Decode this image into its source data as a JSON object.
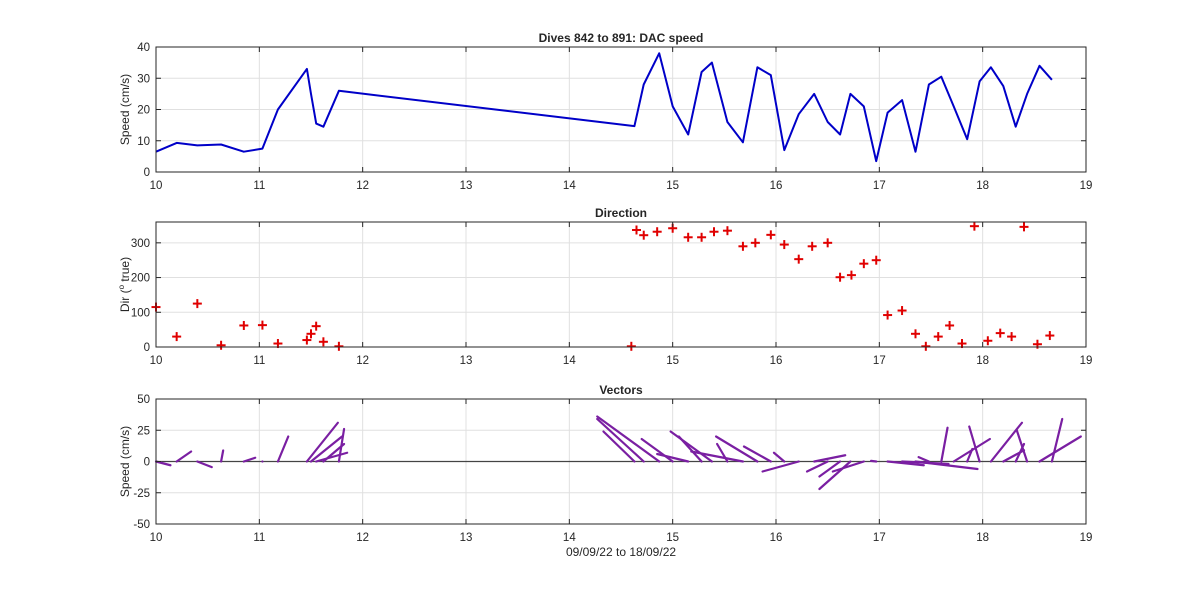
{
  "colors": {
    "speed_line": "#0000c8",
    "direction_marker": "#e00000",
    "vectors": "#7a1fa2",
    "axes": "#262626",
    "grid": "#e0e0e0",
    "zero_line": "#444444"
  },
  "chart_data": [
    {
      "type": "line",
      "title": "Dives 842 to 891: DAC speed",
      "xlabel": "",
      "ylabel": "Speed (cm/s)",
      "xlim": [
        10,
        19
      ],
      "ylim": [
        0,
        40
      ],
      "xticks": [
        10,
        11,
        12,
        13,
        14,
        15,
        16,
        17,
        18,
        19
      ],
      "yticks": [
        0,
        10,
        20,
        30,
        40
      ],
      "grid": true,
      "series": [
        {
          "x": [
            10.0,
            10.2,
            10.4,
            10.63,
            10.85,
            11.03,
            11.18,
            11.46,
            11.5,
            11.55,
            11.62,
            11.77,
            14.63,
            14.72,
            14.87,
            15.0,
            15.15,
            15.28,
            15.38,
            15.53,
            15.68,
            15.82,
            15.95,
            16.08,
            16.22,
            16.37,
            16.5,
            16.62,
            16.72,
            16.85,
            16.97,
            17.08,
            17.22,
            17.35,
            17.48,
            17.6,
            17.72,
            17.85,
            17.97,
            18.08,
            18.2,
            18.32,
            18.43,
            18.55,
            18.67
          ],
          "y": [
            6.5,
            9.3,
            8.5,
            8.8,
            6.5,
            7.5,
            20,
            33,
            25,
            15.5,
            14.5,
            26,
            14.7,
            28,
            38,
            21,
            12,
            32,
            35,
            16,
            9.5,
            33.5,
            31,
            7,
            18.5,
            25,
            16,
            12,
            25,
            21,
            3.5,
            19,
            23,
            6.5,
            28,
            30.5,
            21,
            10.5,
            29,
            33.5,
            27.5,
            14.5,
            25,
            34,
            29.5
          ]
        }
      ]
    },
    {
      "type": "scatter",
      "title": "Direction",
      "xlabel": "",
      "ylabel": "Dir (o true)",
      "ylabel_parts": [
        "Dir (",
        "o",
        " true)"
      ],
      "xlim": [
        10,
        19
      ],
      "ylim": [
        0,
        360
      ],
      "xticks": [
        10,
        11,
        12,
        13,
        14,
        15,
        16,
        17,
        18,
        19
      ],
      "yticks": [
        0,
        100,
        200,
        300
      ],
      "grid": true,
      "series": [
        {
          "x": [
            10.0,
            10.2,
            10.4,
            10.63,
            10.85,
            11.03,
            11.18,
            11.46,
            11.5,
            11.55,
            11.62,
            11.77,
            14.6,
            14.65,
            14.72,
            14.85,
            15.0,
            15.15,
            15.28,
            15.4,
            15.53,
            15.68,
            15.8,
            15.95,
            16.08,
            16.22,
            16.35,
            16.5,
            16.62,
            16.73,
            16.85,
            16.97,
            17.08,
            17.22,
            17.35,
            17.45,
            17.57,
            17.68,
            17.8,
            17.92,
            18.05,
            18.17,
            18.28,
            18.4,
            18.53,
            18.65
          ],
          "y": [
            115,
            30,
            125,
            5,
            62,
            63,
            10,
            20,
            38,
            60,
            15,
            2,
            2,
            337,
            322,
            332,
            342,
            316,
            316,
            332,
            335,
            290,
            300,
            323,
            295,
            253,
            290,
            300,
            201,
            207,
            240,
            250,
            92,
            105,
            38,
            2,
            30,
            62,
            10,
            348,
            18,
            40,
            30,
            346,
            8,
            33
          ]
        }
      ]
    },
    {
      "type": "line",
      "title": "Vectors",
      "xlabel": "09/09/22 to 18/09/22",
      "ylabel": "Speed (cm/s)",
      "xlim": [
        10,
        19
      ],
      "ylim": [
        -50,
        50
      ],
      "xticks": [
        10,
        11,
        12,
        13,
        14,
        15,
        16,
        17,
        18,
        19
      ],
      "yticks": [
        -50,
        -25,
        0,
        25,
        50
      ],
      "grid": true,
      "vectors": [
        {
          "x": 10.0,
          "u": 0.14,
          "v": -3.0
        },
        {
          "x": 10.2,
          "u": 0.14,
          "v": 8.0
        },
        {
          "x": 10.4,
          "u": 0.14,
          "v": -4.5
        },
        {
          "x": 10.63,
          "u": 0.02,
          "v": 8.8
        },
        {
          "x": 10.85,
          "u": 0.11,
          "v": 3.0
        },
        {
          "x": 11.03,
          "u": 0.0,
          "v": 0.0
        },
        {
          "x": 11.18,
          "u": 0.1,
          "v": 20.0
        },
        {
          "x": 11.46,
          "u": 0.3,
          "v": 31.0
        },
        {
          "x": 11.5,
          "u": 0.3,
          "v": 20.0
        },
        {
          "x": 11.55,
          "u": 0.3,
          "v": 7.0
        },
        {
          "x": 11.62,
          "u": 0.2,
          "v": 14.0
        },
        {
          "x": 11.77,
          "u": 0.05,
          "v": 26.0
        },
        {
          "x": 14.63,
          "u": -0.3,
          "v": 24.0
        },
        {
          "x": 14.72,
          "u": -0.45,
          "v": 34.0
        },
        {
          "x": 14.87,
          "u": -0.6,
          "v": 36.0
        },
        {
          "x": 15.0,
          "u": -0.3,
          "v": 18.0
        },
        {
          "x": 15.15,
          "u": -0.3,
          "v": 6.0
        },
        {
          "x": 15.28,
          "u": -0.22,
          "v": 20.0
        },
        {
          "x": 15.38,
          "u": -0.4,
          "v": 24.0
        },
        {
          "x": 15.53,
          "u": -0.1,
          "v": 14.0
        },
        {
          "x": 15.68,
          "u": -0.5,
          "v": 8.0
        },
        {
          "x": 15.82,
          "u": -0.4,
          "v": 20.0
        },
        {
          "x": 15.95,
          "u": -0.26,
          "v": 12.0
        },
        {
          "x": 16.08,
          "u": -0.1,
          "v": 7.0
        },
        {
          "x": 16.22,
          "u": -0.35,
          "v": -8.0
        },
        {
          "x": 16.37,
          "u": 0.3,
          "v": 5.0
        },
        {
          "x": 16.5,
          "u": -0.2,
          "v": -8.0
        },
        {
          "x": 16.62,
          "u": -0.2,
          "v": -12.0
        },
        {
          "x": 16.72,
          "u": -0.3,
          "v": -22.0
        },
        {
          "x": 16.85,
          "u": -0.3,
          "v": -8.0
        },
        {
          "x": 16.97,
          "u": -0.05,
          "v": 0.5
        },
        {
          "x": 17.08,
          "u": 0.35,
          "v": -3.0
        },
        {
          "x": 17.22,
          "u": 0.45,
          "v": -2.0
        },
        {
          "x": 17.35,
          "u": 0.6,
          "v": -6.0
        },
        {
          "x": 17.48,
          "u": -0.1,
          "v": 3.5
        },
        {
          "x": 17.6,
          "u": 0.06,
          "v": 27.0
        },
        {
          "x": 17.72,
          "u": 0.35,
          "v": 18.0
        },
        {
          "x": 17.85,
          "u": 0.05,
          "v": 10.0
        },
        {
          "x": 17.97,
          "u": -0.1,
          "v": 28.0
        },
        {
          "x": 18.08,
          "u": 0.3,
          "v": 31.0
        },
        {
          "x": 18.2,
          "u": 0.2,
          "v": 9.0
        },
        {
          "x": 18.32,
          "u": 0.08,
          "v": 14.0
        },
        {
          "x": 18.43,
          "u": -0.1,
          "v": 25.0
        },
        {
          "x": 18.55,
          "u": 0.4,
          "v": 20.0
        },
        {
          "x": 18.67,
          "u": 0.1,
          "v": 34.0
        }
      ]
    }
  ]
}
